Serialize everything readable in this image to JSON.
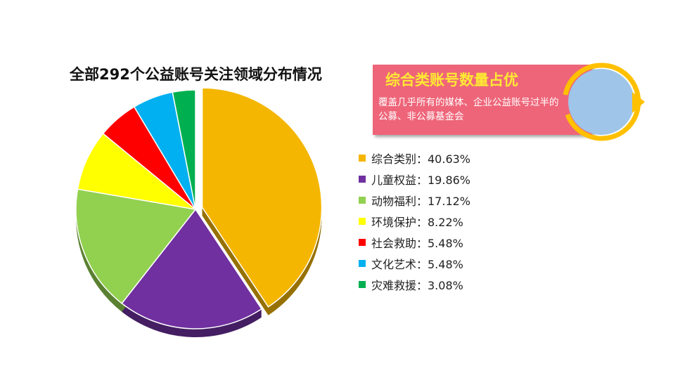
{
  "title": "全部292个公益账号关注领域分布情况",
  "callout": {
    "title": "综合类账号数量占优",
    "text": "覆盖几乎所有的媒体、企业公益账号过半的公募、非公募基金会",
    "color": "#ee6579",
    "title_color": "#ffe933"
  },
  "ring_icon": "circular-arrow-icon",
  "chart_data": {
    "type": "pie",
    "categories": [
      "综合类别",
      "儿童权益",
      "动物福利",
      "环境保护",
      "社会救助",
      "文化艺术",
      "灾难救援"
    ],
    "values": [
      40.63,
      19.86,
      17.12,
      8.22,
      5.48,
      5.48,
      3.08
    ],
    "colors": [
      "#f4b600",
      "#7030a0",
      "#92d050",
      "#ffff00",
      "#ff0000",
      "#00b0f0",
      "#00b050"
    ],
    "legend_labels": [
      "综合类别：40.63%",
      "儿童权益：19.86%",
      "动物福利：17.12%",
      "环境保护：8.22%",
      "社会救助：5.48%",
      "文化艺术：5.48%",
      "灾难救援：3.08%"
    ],
    "exploded": "综合类别",
    "legend_position": "right"
  }
}
